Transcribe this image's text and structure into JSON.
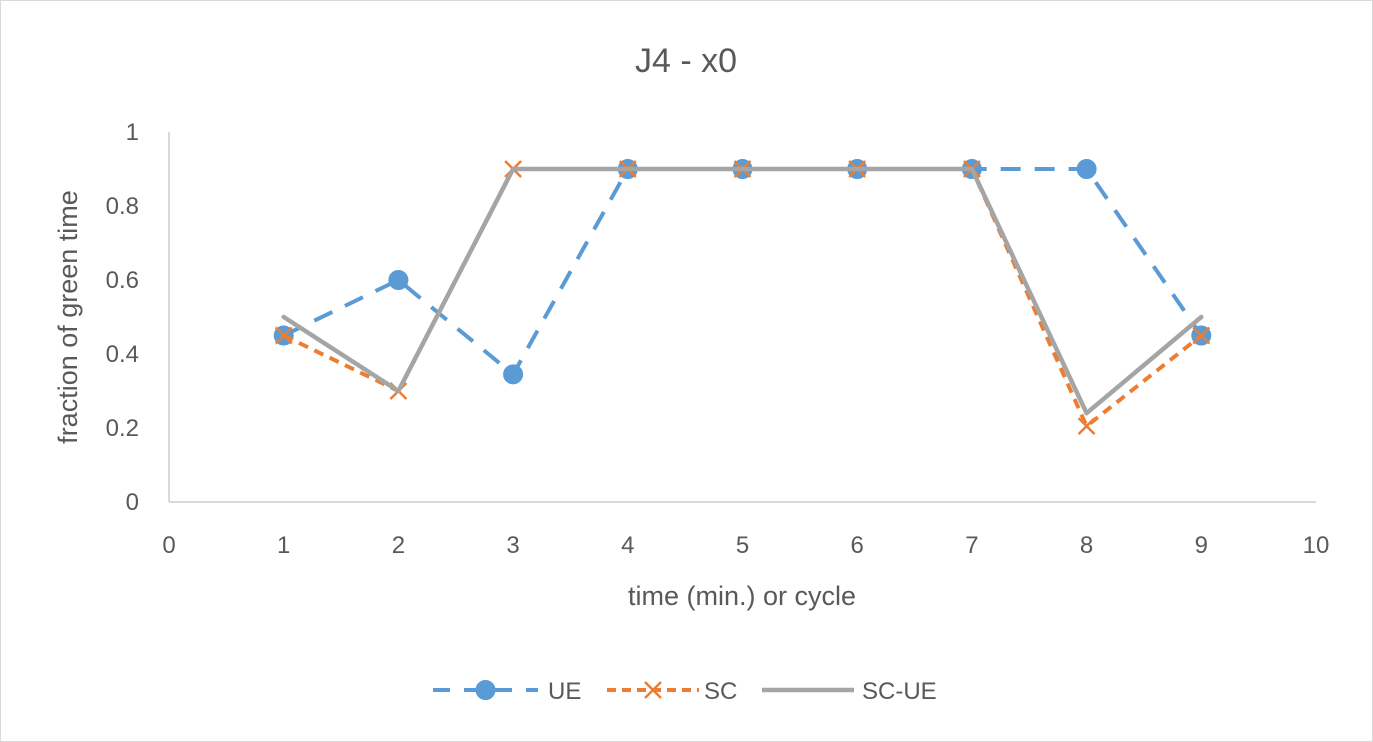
{
  "chart_data": {
    "type": "line",
    "title": "J4 - x0",
    "xlabel": "time (min.) or cycle",
    "ylabel": "fraction of green time",
    "xlim": [
      0,
      10
    ],
    "ylim": [
      0,
      1
    ],
    "xticks": [
      "0",
      "1",
      "2",
      "3",
      "4",
      "5",
      "6",
      "7",
      "8",
      "9",
      "10"
    ],
    "yticks": [
      "0",
      "0.2",
      "0.4",
      "0.6",
      "0.8",
      "1"
    ],
    "grid": false,
    "legend": "bottom",
    "series": [
      {
        "name": "UE",
        "color": "#5b9bd5",
        "marker": "circle",
        "line": "dashed",
        "x": [
          1,
          2,
          3,
          4,
          5,
          6,
          7,
          8,
          9
        ],
        "y": [
          0.45,
          0.6,
          0.345,
          0.9,
          0.9,
          0.9,
          0.9,
          0.9,
          0.45
        ]
      },
      {
        "name": "SC",
        "color": "#ed7d31",
        "marker": "x",
        "line": "dashed",
        "x": [
          1,
          2,
          3,
          4,
          5,
          6,
          7,
          8,
          9
        ],
        "y": [
          0.45,
          0.3,
          0.9,
          0.9,
          0.9,
          0.9,
          0.9,
          0.205,
          0.45
        ]
      },
      {
        "name": "SC-UE",
        "color": "#a5a5a5",
        "marker": "none",
        "line": "solid",
        "x": [
          1,
          2,
          3,
          4,
          5,
          6,
          7,
          8,
          9
        ],
        "y": [
          0.5,
          0.3,
          0.9,
          0.9,
          0.9,
          0.9,
          0.9,
          0.24,
          0.5
        ]
      }
    ]
  }
}
